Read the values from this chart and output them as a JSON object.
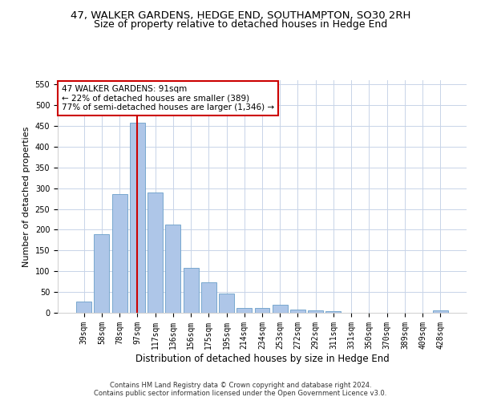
{
  "title": "47, WALKER GARDENS, HEDGE END, SOUTHAMPTON, SO30 2RH",
  "subtitle": "Size of property relative to detached houses in Hedge End",
  "xlabel": "Distribution of detached houses by size in Hedge End",
  "ylabel": "Number of detached properties",
  "categories": [
    "39sqm",
    "58sqm",
    "78sqm",
    "97sqm",
    "117sqm",
    "136sqm",
    "156sqm",
    "175sqm",
    "195sqm",
    "214sqm",
    "234sqm",
    "253sqm",
    "272sqm",
    "292sqm",
    "311sqm",
    "331sqm",
    "350sqm",
    "370sqm",
    "389sqm",
    "409sqm",
    "428sqm"
  ],
  "values": [
    28,
    190,
    286,
    457,
    290,
    212,
    109,
    73,
    46,
    11,
    11,
    20,
    7,
    5,
    4,
    0,
    0,
    0,
    0,
    0,
    5
  ],
  "bar_color": "#aec6e8",
  "bar_edge_color": "#6a9fc8",
  "vline_x_index": 3,
  "vline_color": "#cc0000",
  "annotation_line1": "47 WALKER GARDENS: 91sqm",
  "annotation_line2": "← 22% of detached houses are smaller (389)",
  "annotation_line3": "77% of semi-detached houses are larger (1,346) →",
  "annotation_box_color": "#ffffff",
  "annotation_box_edge_color": "#cc0000",
  "ylim": [
    0,
    560
  ],
  "yticks": [
    0,
    50,
    100,
    150,
    200,
    250,
    300,
    350,
    400,
    450,
    500,
    550
  ],
  "footer_line1": "Contains HM Land Registry data © Crown copyright and database right 2024.",
  "footer_line2": "Contains public sector information licensed under the Open Government Licence v3.0.",
  "background_color": "#ffffff",
  "grid_color": "#c8d4e8",
  "title_fontsize": 9.5,
  "subtitle_fontsize": 9,
  "tick_fontsize": 7,
  "ylabel_fontsize": 8,
  "xlabel_fontsize": 8.5,
  "footer_fontsize": 6,
  "annotation_fontsize": 7.5
}
